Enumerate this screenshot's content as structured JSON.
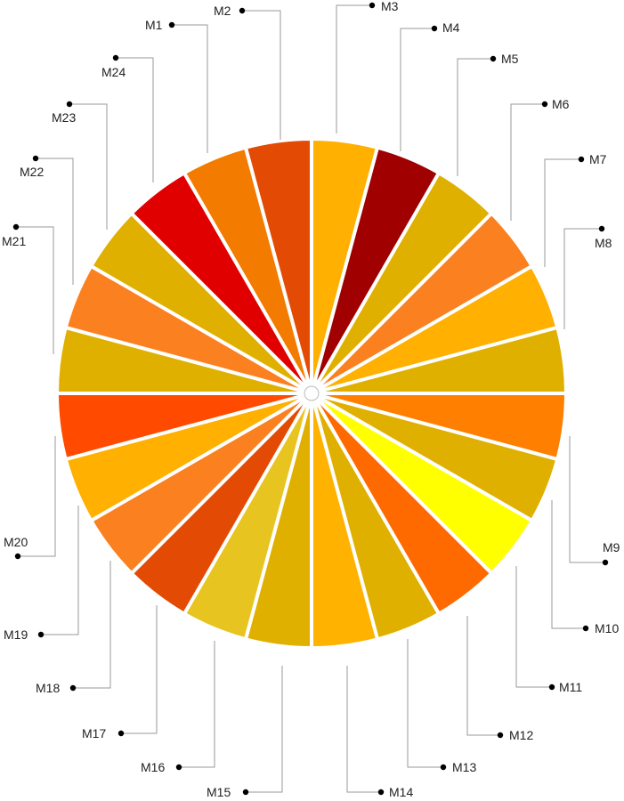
{
  "chart_data": {
    "type": "pie",
    "title": "",
    "categories": [
      "M1",
      "M2",
      "M3",
      "M4",
      "M5",
      "M6",
      "M7",
      "M8",
      "M9",
      "M10",
      "M11",
      "M12",
      "M13",
      "M14",
      "M15",
      "M16",
      "M17",
      "M18",
      "M19",
      "M20",
      "M21",
      "M22",
      "M23",
      "M24"
    ],
    "values": [
      1,
      1,
      1,
      1,
      1,
      1,
      1,
      1,
      1,
      1,
      1,
      1,
      1,
      1,
      1,
      1,
      1,
      1,
      1,
      1,
      1,
      1,
      1,
      1
    ],
    "colors": [
      "#f27b00",
      "#e34a03",
      "#ffb000",
      "#a00000",
      "#e0b000",
      "#fb8020",
      "#ffb000",
      "#e0b000",
      "#ff7f00",
      "#e0b000",
      "#ffff00",
      "#ff6a00",
      "#e0b000",
      "#ffb200",
      "#e0b000",
      "#e8c420",
      "#e34a03",
      "#fb8020",
      "#ffb000",
      "#ff4a00",
      "#e0b000",
      "#fb8020",
      "#e0b000",
      "#e00000"
    ]
  }
}
